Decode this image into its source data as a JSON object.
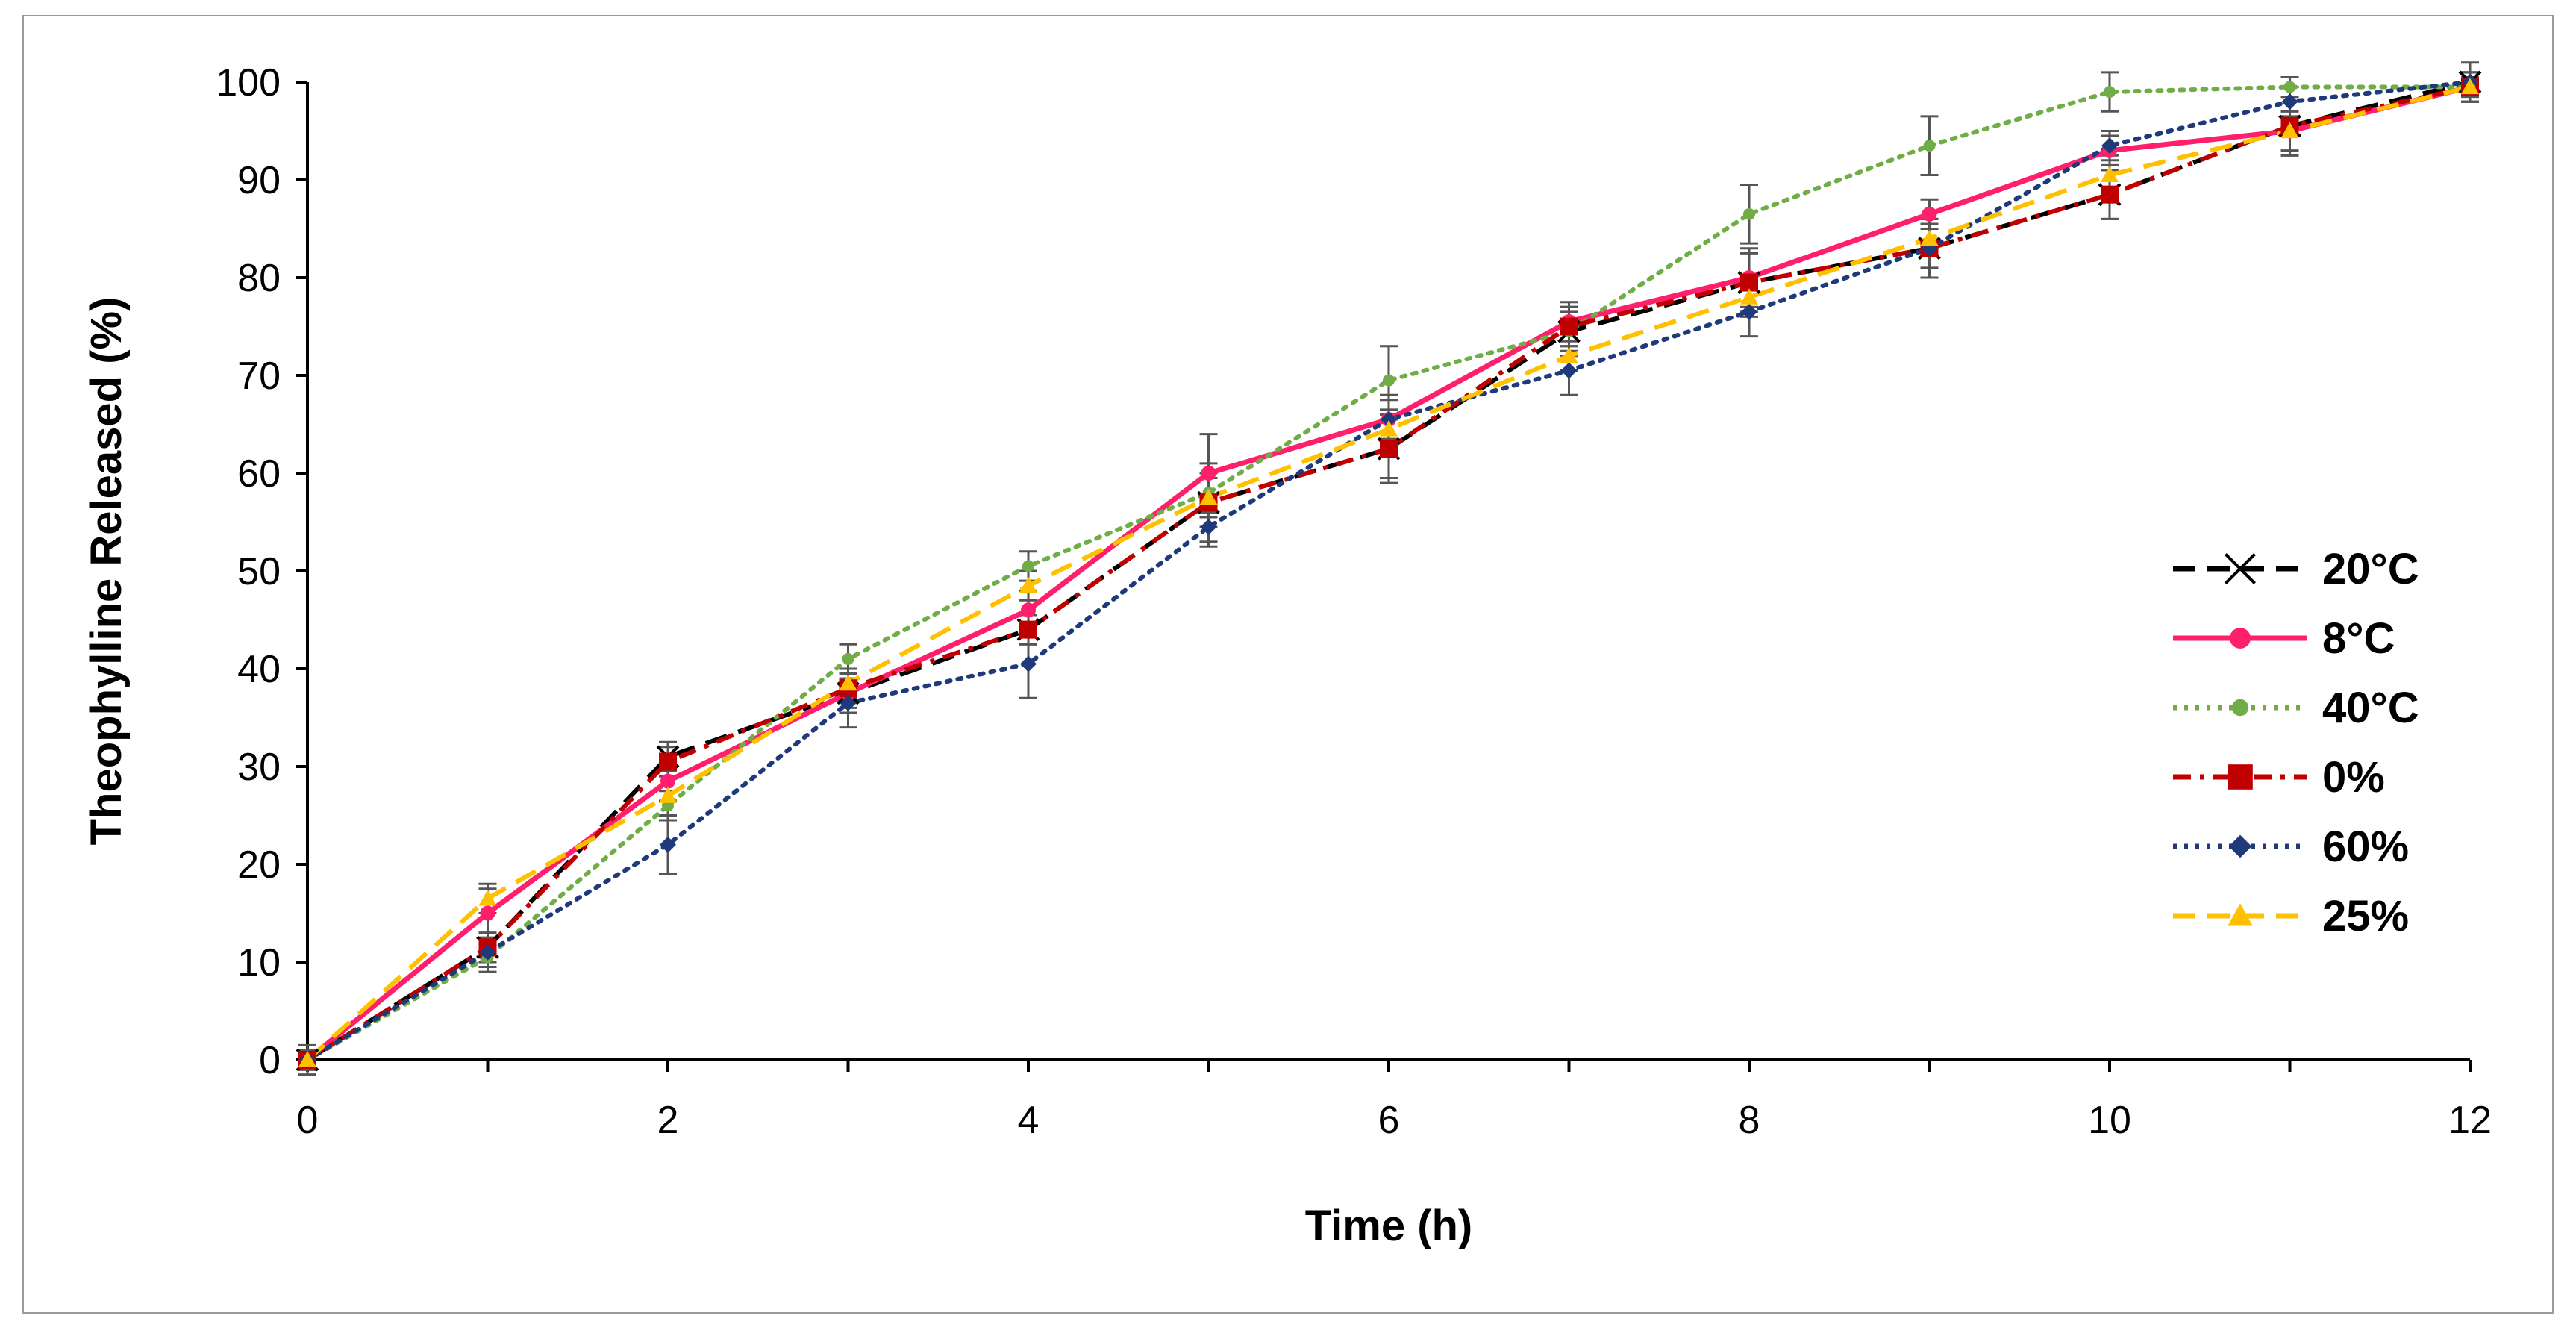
{
  "chart_data": {
    "type": "line",
    "title": "",
    "xlabel": "Time (h)",
    "ylabel": "Theophylline Released (%)",
    "xlim": [
      0,
      12
    ],
    "ylim": [
      0,
      100
    ],
    "xticks": [
      "0",
      "2",
      "4",
      "6",
      "8",
      "10",
      "12"
    ],
    "yticks": [
      "0",
      "10",
      "20",
      "30",
      "40",
      "50",
      "60",
      "70",
      "80",
      "90",
      "100"
    ],
    "grid": false,
    "legend_position": "right",
    "x": [
      0,
      1,
      2,
      3,
      4,
      5,
      6,
      7,
      8,
      9,
      10,
      11,
      12
    ],
    "series": [
      {
        "name": "20°C",
        "color": "#000000",
        "dash": "long-dash",
        "marker": "x",
        "values": [
          0,
          11.5,
          31,
          37.5,
          44,
          57,
          62.5,
          74.5,
          79.5,
          83,
          88.5,
          95.5,
          100
        ],
        "errors": [
          1.5,
          1.5,
          1.5,
          1.5,
          1.5,
          4,
          3.5,
          2.5,
          3,
          3,
          2.5,
          3,
          2
        ]
      },
      {
        "name": "8°C",
        "color": "#ff1f6d",
        "dash": "solid",
        "marker": "circle",
        "values": [
          0,
          15,
          28.5,
          37.5,
          46,
          60,
          65.5,
          75.5,
          80,
          86.5,
          93,
          95,
          99.5
        ],
        "errors": [
          1,
          2.5,
          2,
          2,
          2,
          4,
          2,
          2,
          3,
          1.5,
          1.5,
          2,
          1.5
        ]
      },
      {
        "name": "40°C",
        "color": "#70ad47",
        "dash": "dotted",
        "marker": "circle-small",
        "values": [
          0,
          10.5,
          26,
          41,
          50.5,
          58,
          69.5,
          74.5,
          86.5,
          93.5,
          99,
          99.5,
          99.5
        ],
        "errors": [
          1,
          1.5,
          1.5,
          1.5,
          1.5,
          2,
          3.5,
          2,
          3,
          3,
          2,
          1,
          1
        ]
      },
      {
        "name": "0%",
        "color": "#c00000",
        "dash": "dash-dot",
        "marker": "square",
        "values": [
          0,
          11.5,
          30.5,
          38,
          44,
          57,
          62.5,
          75,
          79.5,
          83,
          88.5,
          95.5,
          99.5
        ],
        "errors": [
          1,
          1.5,
          1.5,
          1.5,
          1.5,
          2.5,
          3,
          2,
          3,
          3,
          2.5,
          3,
          1.5
        ]
      },
      {
        "name": "60%",
        "color": "#1f3a7a",
        "dash": "dotted",
        "marker": "diamond",
        "values": [
          0,
          11,
          22,
          36.5,
          40.5,
          54.5,
          65.5,
          70.5,
          76.5,
          83,
          93.5,
          98,
          100
        ],
        "errors": [
          1,
          1.5,
          3,
          2.5,
          3.5,
          2,
          2.5,
          2.5,
          2.5,
          2,
          1.5,
          1.5,
          1
        ]
      },
      {
        "name": "25%",
        "color": "#ffc000",
        "dash": "long-dash",
        "marker": "triangle",
        "values": [
          0,
          16.5,
          27,
          38.5,
          48.5,
          57.5,
          64.5,
          72,
          78,
          84,
          90.5,
          95,
          99.5
        ],
        "errors": [
          1,
          1.5,
          2,
          1.5,
          1.5,
          2,
          2,
          1.5,
          2,
          1.5,
          2,
          2,
          1.5
        ]
      }
    ]
  }
}
